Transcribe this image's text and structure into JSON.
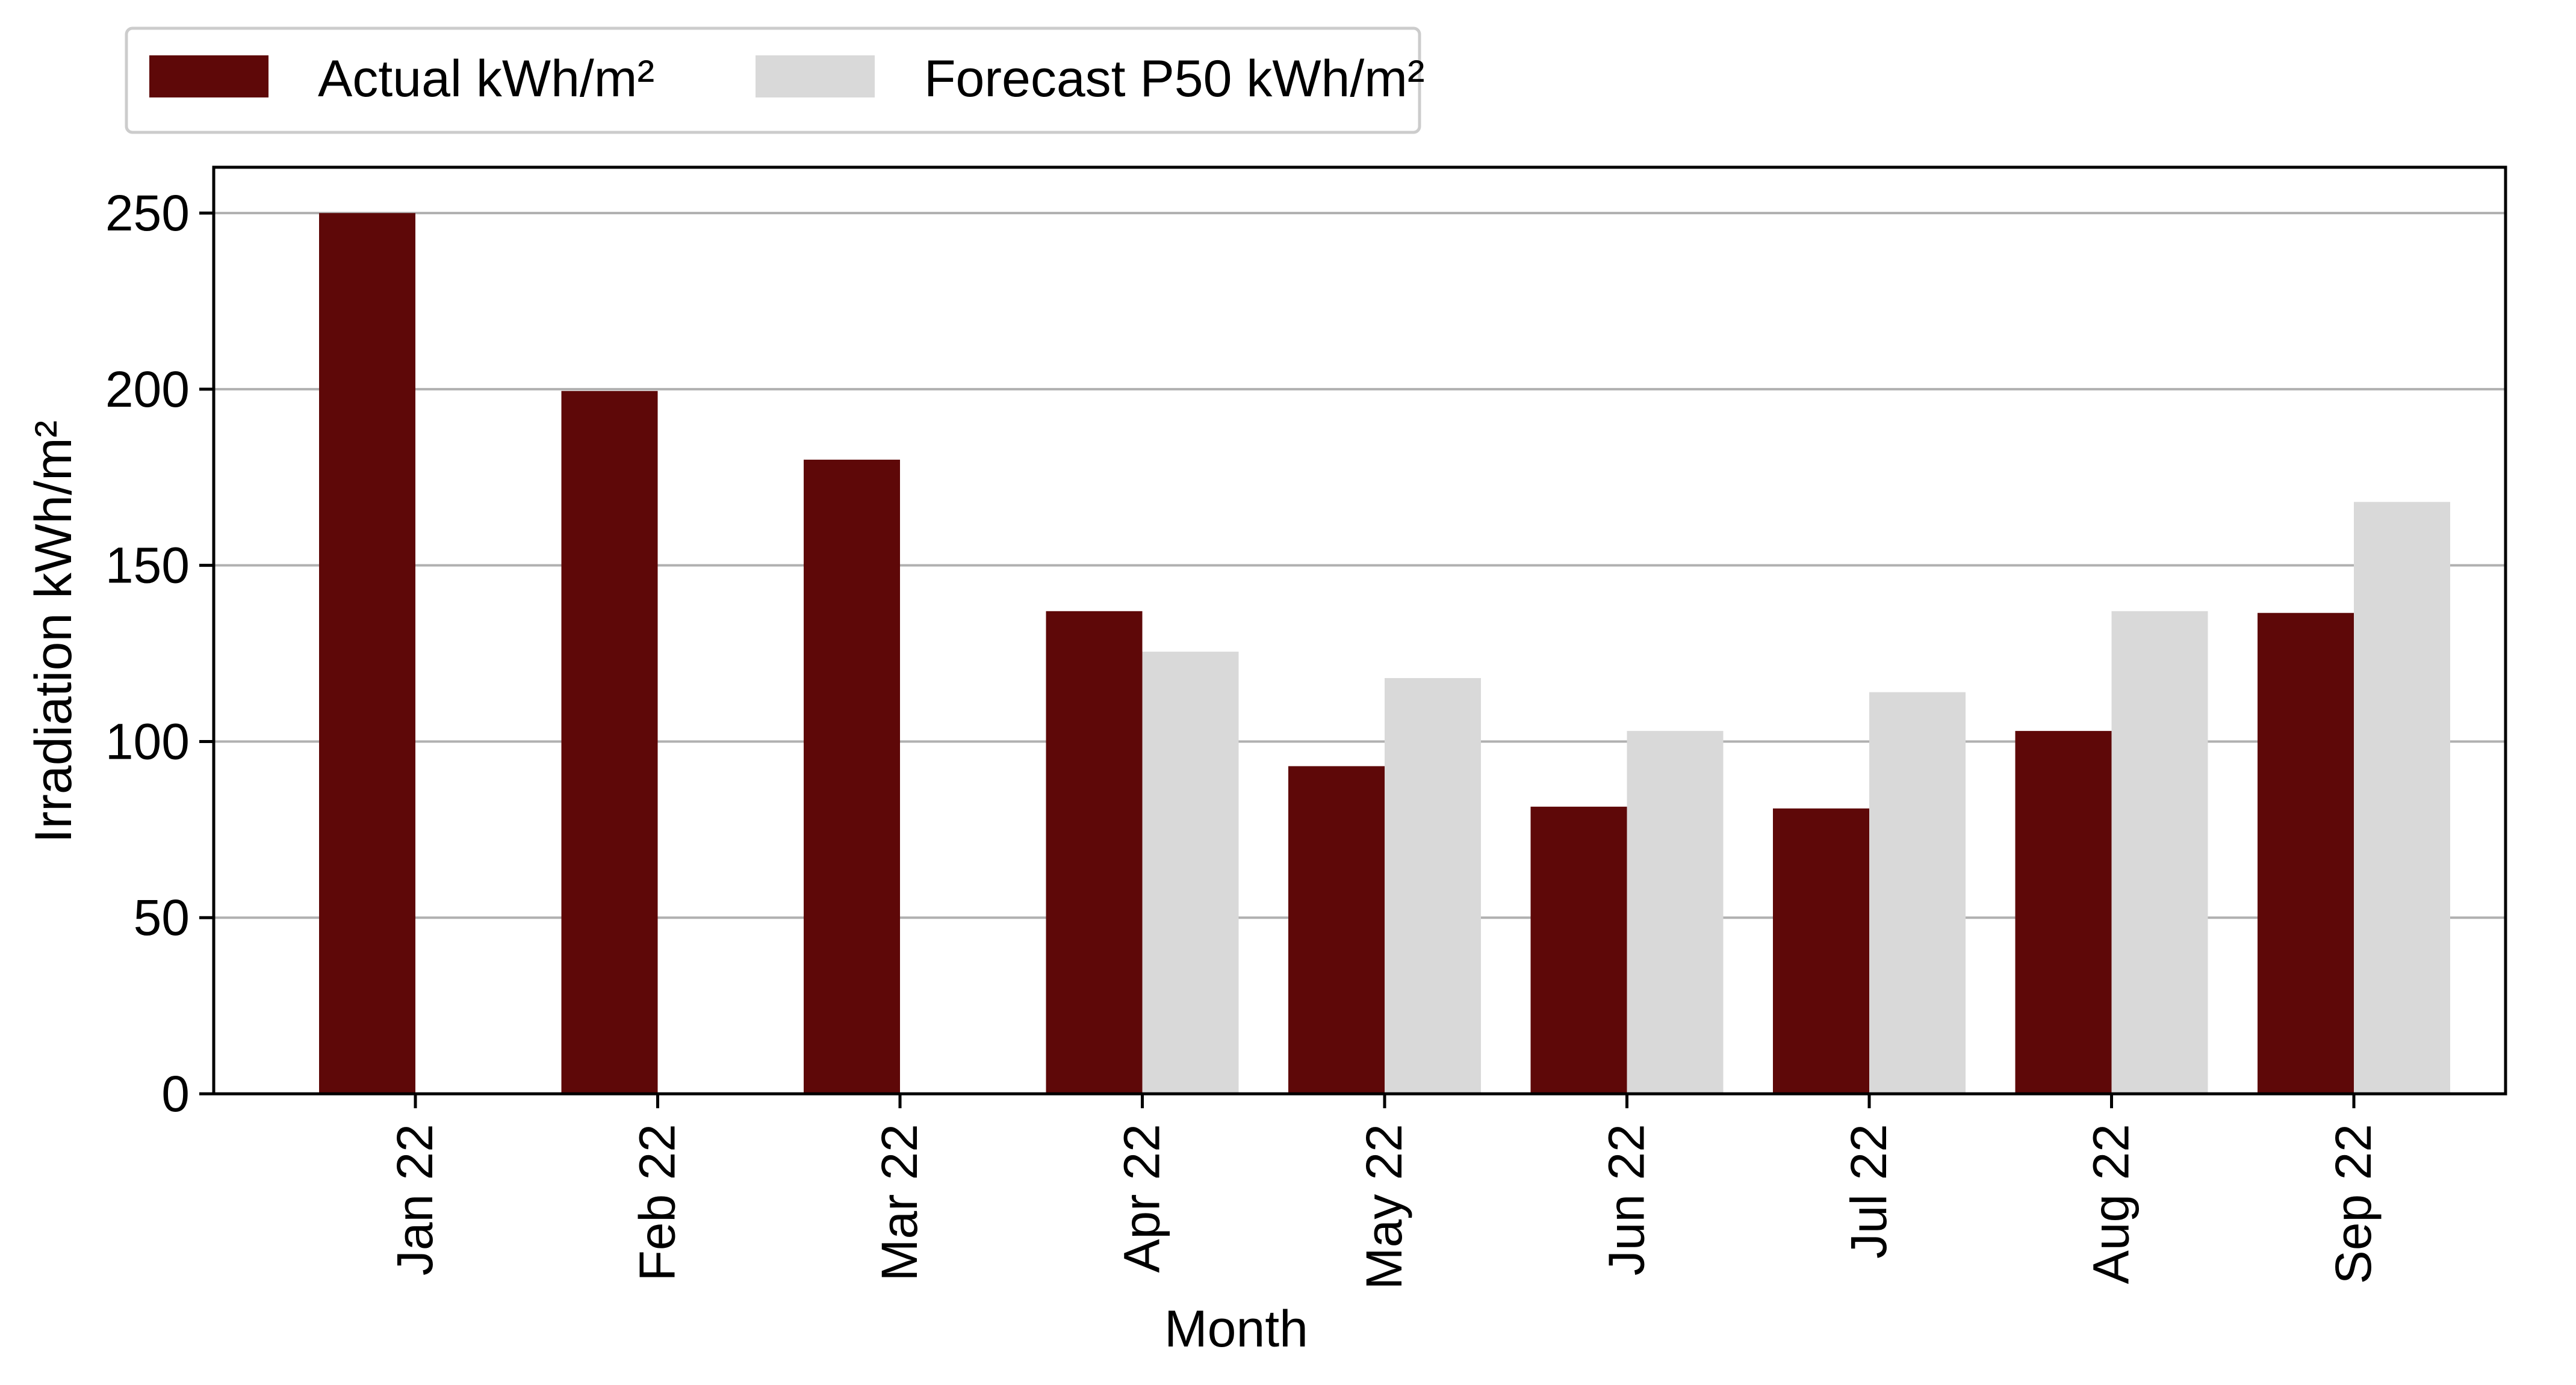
{
  "chart_data": {
    "type": "bar",
    "title": "",
    "xlabel": "Month",
    "ylabel": "Irradiation kWh/m²",
    "ylim": [
      0,
      263
    ],
    "yticks": [
      0,
      50,
      100,
      150,
      200,
      250
    ],
    "grid": "horizontal",
    "legend_position": "top-left, above plot",
    "categories": [
      "Jan 22",
      "Feb 22",
      "Mar 22",
      "Apr 22",
      "May 22",
      "Jun 22",
      "Jul 22",
      "Aug 22",
      "Sep 22"
    ],
    "series": [
      {
        "name": "Actual kWh/m²",
        "color": "#5e0808",
        "values": [
          250,
          199.5,
          180,
          137,
          93,
          81.5,
          81,
          103,
          136.5
        ]
      },
      {
        "name": "Forecast P50 kWh/m²",
        "color": "#d9d9d9",
        "values": [
          null,
          null,
          null,
          125.5,
          118,
          103,
          114,
          137,
          168
        ]
      }
    ]
  }
}
